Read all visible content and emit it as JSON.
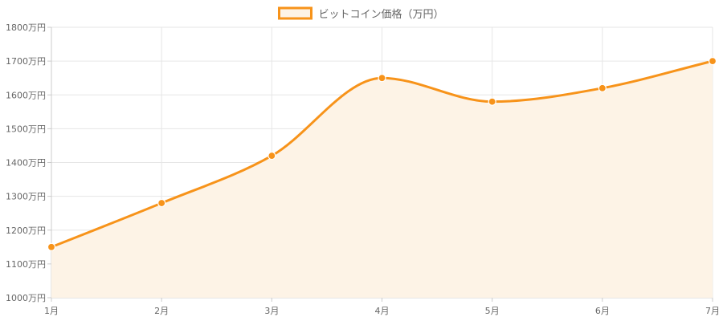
{
  "chart_data": {
    "type": "area",
    "categories": [
      "1月",
      "2月",
      "3月",
      "4月",
      "5月",
      "6月",
      "7月"
    ],
    "series": [
      {
        "name": "ビットコイン価格（万円）",
        "values": [
          1150,
          1280,
          1420,
          1650,
          1580,
          1620,
          1700
        ]
      }
    ],
    "ylim": [
      1000,
      1800
    ],
    "yticks": [
      1000,
      1100,
      1200,
      1300,
      1400,
      1500,
      1600,
      1700,
      1800
    ],
    "ytick_suffix": "万円",
    "grid": true,
    "legend_position": "top-center",
    "colors": {
      "line": "#f7931a",
      "fill": "#fdf3e6",
      "grid": "#e6e6e6",
      "axis": "#cccccc",
      "text": "#666666"
    }
  }
}
